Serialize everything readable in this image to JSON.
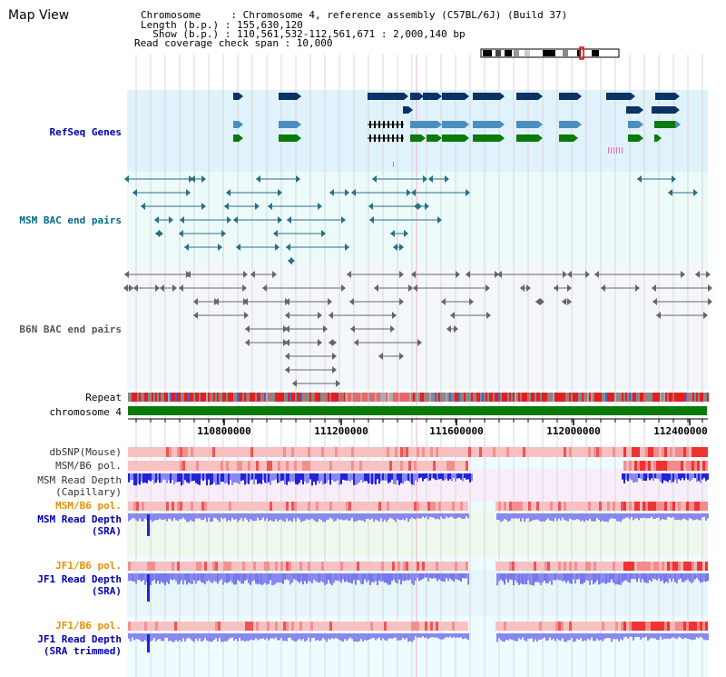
{
  "title": "Map View",
  "info": {
    "line1": "Chromosome     : Chromosome 4, reference assembly (C57BL/6J) (Build 37)",
    "line2": "Length (b.p.) : 155,630,120",
    "line3": "  Show (b.p.) : 110,561,532-112,561,671 : 2,000,140 bp",
    "line4": "Read coverage check span : 10,000"
  },
  "tracks": {
    "refseq": "RefSeq Genes",
    "msm_bac": "MSM BAC end pairs",
    "b6n_bac": "B6N BAC end pairs",
    "repeat": "Repeat",
    "chromosome": "chromosome 4",
    "dbsnp": "dbSNP(Mouse)",
    "msm_b6_pol_1": "MSM/B6 pol.",
    "msm_depth_cap_1": "MSM Read Depth",
    "msm_depth_cap_2": "(Capillary)",
    "msm_b6_pol_2": "MSM/B6 pol.",
    "msm_depth_sra_1": "MSM Read Depth",
    "msm_depth_sra_2": "(SRA)",
    "jf1_b6_pol_1": "JF1/B6 pol.",
    "jf1_depth_sra_1": "JF1 Read Depth",
    "jf1_depth_sra_2": "(SRA)",
    "jf1_b6_pol_2": "JF1/B6 pol.",
    "jf1_depth_trim_1": "JF1 Read Depth",
    "jf1_depth_trim_2": "(SRA trimmed)"
  },
  "axis": {
    "ticks": [
      "110800000",
      "111200000",
      "111600000",
      "112000000",
      "112400000"
    ]
  },
  "colors": {
    "refseq_bg": "#e0f2fb",
    "bac_bg": "#ecfafa",
    "refseq_dark": "#0a3266",
    "refseq_mid": "#4a8fbf",
    "refseq_green": "#0a7a0a",
    "bac_teal": "#2a6f86",
    "bac_gray": "#666666",
    "chrom_green": "#0a7a0a",
    "depth_blue": "#2222dd",
    "depth_light": "#8888ee",
    "pol_red": "#f4a0a0",
    "pol_dark_red": "#ee2222"
  }
}
